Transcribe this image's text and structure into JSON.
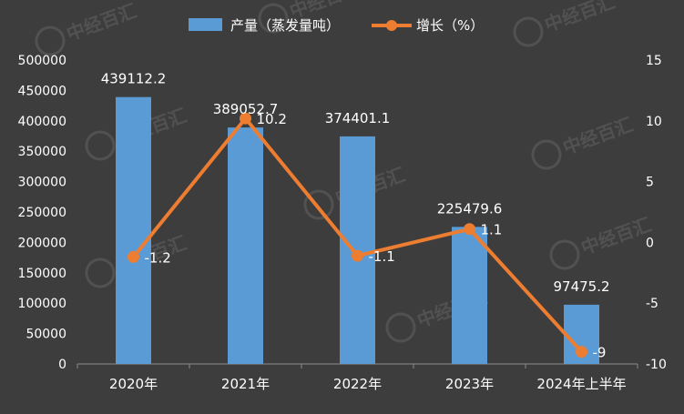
{
  "chart_data": {
    "type": "bar+line",
    "categories": [
      "2020年",
      "2021年",
      "2022年",
      "2023年",
      "2024年上半年"
    ],
    "series": [
      {
        "name": "产量（蒸发量吨）",
        "type": "bar",
        "axis": "left",
        "color": "#5b9bd5",
        "values": [
          439112.2,
          389052.7,
          374401.1,
          225479.6,
          97475.2
        ],
        "labels": [
          "439112.2",
          "389052.7",
          "374401.1",
          "225479.6",
          "97475.2"
        ]
      },
      {
        "name": "增长（%）",
        "type": "line",
        "axis": "right",
        "color": "#ed7d31",
        "values": [
          -1.2,
          10.2,
          -1.1,
          1.1,
          -9
        ],
        "labels": [
          "-1.2",
          "10.2",
          "-1.1",
          "1.1",
          "-9"
        ]
      }
    ],
    "left_axis": {
      "min": 0,
      "max": 500000,
      "step": 50000,
      "ticks": [
        "0",
        "50000",
        "100000",
        "150000",
        "200000",
        "250000",
        "300000",
        "350000",
        "400000",
        "450000",
        "500000"
      ]
    },
    "right_axis": {
      "min": -10,
      "max": 15,
      "step": 5,
      "ticks": [
        "-10",
        "-5",
        "0",
        "5",
        "10",
        "15"
      ]
    },
    "grid": false,
    "legend_position": "top"
  },
  "watermark": {
    "text": "中经百汇"
  },
  "colors": {
    "background": "#3d3d3d",
    "text": "#ffffff",
    "axis": "#8c8c8c"
  }
}
